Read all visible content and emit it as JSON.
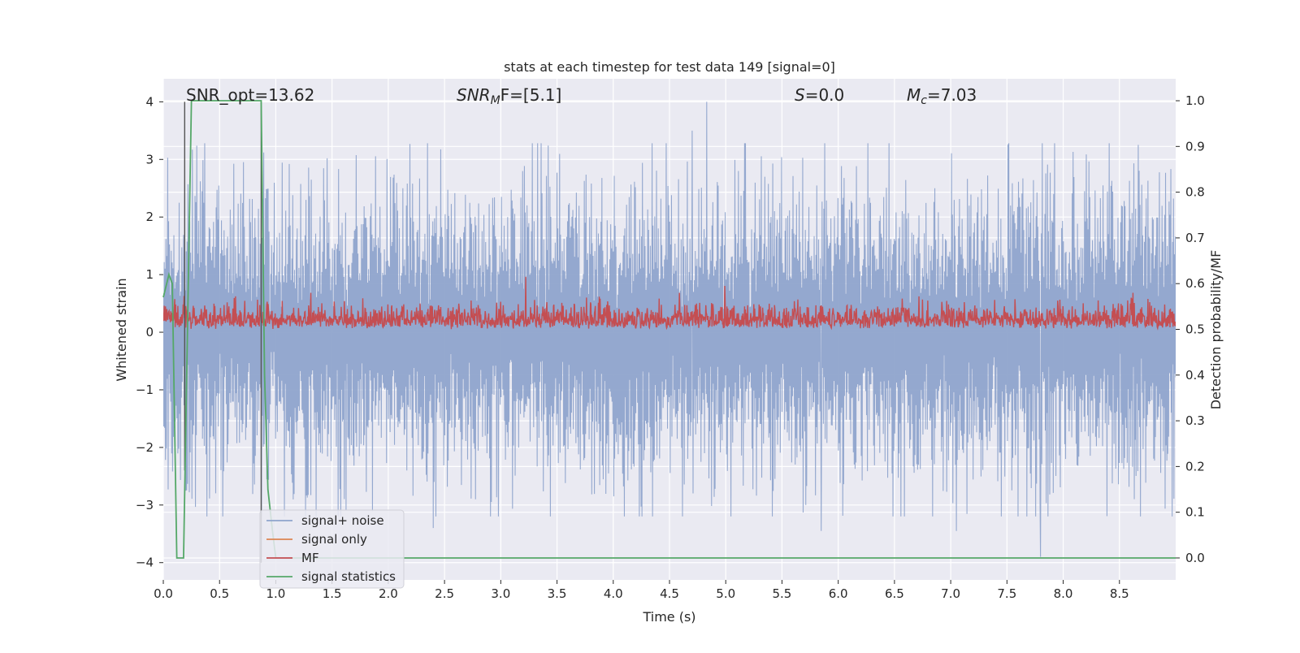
{
  "chart_data": {
    "type": "line",
    "title": "stats at each timestep for test data 149 [signal=0]",
    "xlabel": "Time (s)",
    "ylabel_left": "Whitened strain",
    "ylabel_right": "Detection probability/MF",
    "xlim": [
      0.0,
      9.0
    ],
    "ylim_left": [
      -4.3,
      4.4
    ],
    "ylim_right": [
      -0.048,
      1.048
    ],
    "x_ticks": [
      0.0,
      0.5,
      1.0,
      1.5,
      2.0,
      2.5,
      3.0,
      3.5,
      4.0,
      4.5,
      5.0,
      5.5,
      6.0,
      6.5,
      7.0,
      7.5,
      8.0,
      8.5
    ],
    "x_tick_labels": [
      "0.0",
      "0.5",
      "1.0",
      "1.5",
      "2.0",
      "2.5",
      "3.0",
      "3.5",
      "4.0",
      "4.5",
      "5.0",
      "5.5",
      "6.0",
      "6.5",
      "7.0",
      "7.5",
      "8.0",
      "8.5"
    ],
    "y_left_ticks": [
      -4,
      -3,
      -2,
      -1,
      0,
      1,
      2,
      3,
      4
    ],
    "y_left_tick_labels": [
      "−4",
      "−3",
      "−2",
      "−1",
      "0",
      "1",
      "2",
      "3",
      "4"
    ],
    "y_right_ticks": [
      0.0,
      0.1,
      0.2,
      0.3,
      0.4,
      0.5,
      0.6,
      0.7,
      0.8,
      0.9,
      1.0
    ],
    "y_right_tick_labels": [
      "0.0",
      "0.1",
      "0.2",
      "0.3",
      "0.4",
      "0.5",
      "0.6",
      "0.7",
      "0.8",
      "0.9",
      "1.0"
    ],
    "grid": true,
    "legend_position": "lower-left",
    "annotations": [
      {
        "text": "SNR_opt=13.62",
        "x": 0.19,
        "y": 4.0
      },
      {
        "text": "SNR_MF=[5.1]",
        "x": 2.6,
        "y": 4.0
      },
      {
        "text": "S=0.0",
        "x": 5.6,
        "y": 4.0
      },
      {
        "text": "M_c=7.03",
        "x": 6.6,
        "y": 4.0
      }
    ],
    "vlines": [
      {
        "x": 0.19,
        "y": [
          -2.4,
          4.0
        ]
      },
      {
        "x": 0.87,
        "y": [
          -4.0,
          4.0
        ]
      }
    ],
    "series": [
      {
        "name": "signal+ noise",
        "color": "#8fa4cc",
        "axis": "left",
        "kind": "noise",
        "n_points": 2300,
        "envelope_max": 4.0,
        "envelope_min": -3.9,
        "spikes": [
          {
            "x": 4.83,
            "y": 4.0
          },
          {
            "x": 7.8,
            "y": 3.65
          },
          {
            "x": 4.7,
            "y": 3.5
          },
          {
            "x": 7.8,
            "y": -3.9
          },
          {
            "x": 5.85,
            "y": -3.45
          },
          {
            "x": 2.4,
            "y": -3.4
          },
          {
            "x": 7.05,
            "y": -3.45
          }
        ]
      },
      {
        "name": "signal only",
        "color": "#dd8452",
        "axis": "left",
        "kind": "none"
      },
      {
        "name": "MF",
        "color": "#c44e52",
        "axis": "right",
        "kind": "mf",
        "n_points": 2300,
        "band": [
          0.5,
          0.58
        ],
        "peaks": [
          {
            "x": 3.22,
            "y": 0.615
          },
          {
            "x": 4.99,
            "y": 0.595
          }
        ]
      },
      {
        "name": "signal statistics",
        "color": "#55a868",
        "axis": "right",
        "kind": "line",
        "x": [
          0.0,
          0.05,
          0.08,
          0.12,
          0.18,
          0.25,
          0.87,
          0.9,
          0.93,
          0.97,
          1.0,
          9.0
        ],
        "y": [
          0.57,
          0.62,
          0.6,
          0.0,
          0.0,
          1.0,
          1.0,
          0.4,
          0.15,
          0.06,
          0.0,
          0.0
        ]
      }
    ]
  },
  "legend": {
    "items": [
      {
        "label": "signal+ noise",
        "color": "#8fa4cc"
      },
      {
        "label": "signal only",
        "color": "#dd8452"
      },
      {
        "label": "MF",
        "color": "#c44e52"
      },
      {
        "label": "signal statistics",
        "color": "#55a868"
      }
    ]
  },
  "annotation_display": {
    "snr_opt": "SNR_opt=13.62",
    "snr_mf_base": "SNR",
    "snr_mf_sub": "M",
    "snr_mf_rest": "F=[5.1]",
    "s_var": "S",
    "s_rest": "=0.0",
    "mc_base": "M",
    "mc_sub": "c",
    "mc_rest": "=7.03"
  }
}
